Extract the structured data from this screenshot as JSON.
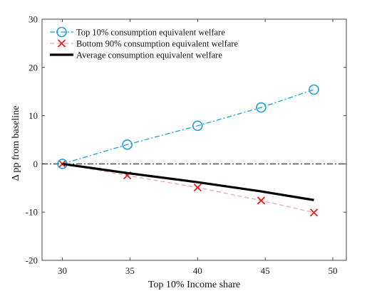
{
  "chart_data": {
    "type": "line",
    "x": [
      30,
      34.8,
      40,
      44.7,
      48.6
    ],
    "xlabel": "Top 10% Income share",
    "ylabel": "Δ pp from baseline",
    "xlim": [
      28.5,
      51
    ],
    "ylim": [
      -20,
      30
    ],
    "xticks": [
      "30",
      "35",
      "40",
      "45",
      "50"
    ],
    "yticks": [
      "30",
      "20",
      "10",
      "0",
      "-10",
      "-20"
    ],
    "grid": false,
    "legend_position": "top-left",
    "reference_line": {
      "y": 0,
      "style": "dash-dot",
      "color": "#000000"
    },
    "series": [
      {
        "name": "Top 10% consumption equivalent welfare",
        "values": [
          0,
          4.0,
          7.9,
          11.7,
          15.4
        ],
        "color": "#1fa0d8",
        "marker": "circle",
        "line": "dash-dot"
      },
      {
        "name": "Bottom 90% consumption equivalent welfare",
        "values": [
          0,
          -2.4,
          -4.9,
          -7.6,
          -10.1
        ],
        "color": "#e81f1f",
        "line_color": "#f3a3a3",
        "marker": "x",
        "line": "dashed"
      },
      {
        "name": "Average consumption equivalent welfare",
        "values": [
          0,
          -1.9,
          -3.8,
          -5.7,
          -7.5
        ],
        "color": "#000000",
        "marker": "none",
        "line": "solid"
      }
    ]
  }
}
